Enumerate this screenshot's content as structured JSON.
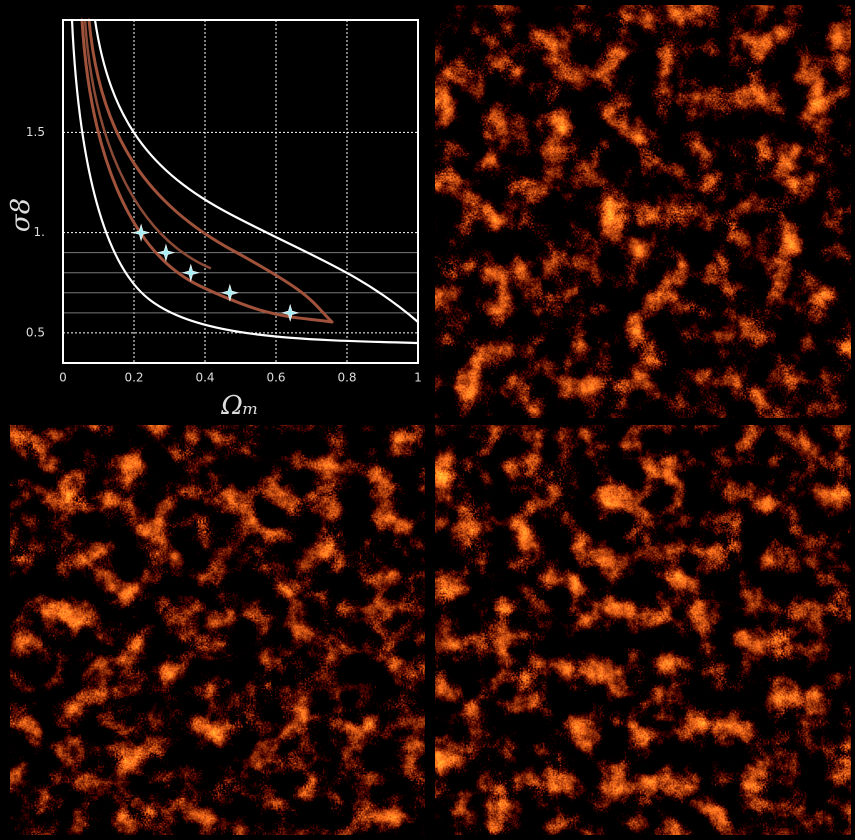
{
  "chart_data": {
    "type": "scatter",
    "x_label": "Ωₘ",
    "y_label": "σ8",
    "x": [
      0.22,
      0.29,
      0.36,
      0.47,
      0.64
    ],
    "values": [
      1.0,
      0.9,
      0.8,
      0.7,
      0.6
    ],
    "color": "#a8eef5",
    "hlines": [
      0.9,
      0.8,
      0.7,
      0.6
    ],
    "xlim": [
      0,
      1
    ],
    "ylim": [
      0.35,
      2.06
    ],
    "xticks": [
      0,
      0.2,
      0.4,
      0.6,
      0.8,
      1
    ],
    "yticks": [
      0.5,
      {
        "value": 1,
        "label": "1."
      },
      1.5
    ],
    "grid": true
  }
}
